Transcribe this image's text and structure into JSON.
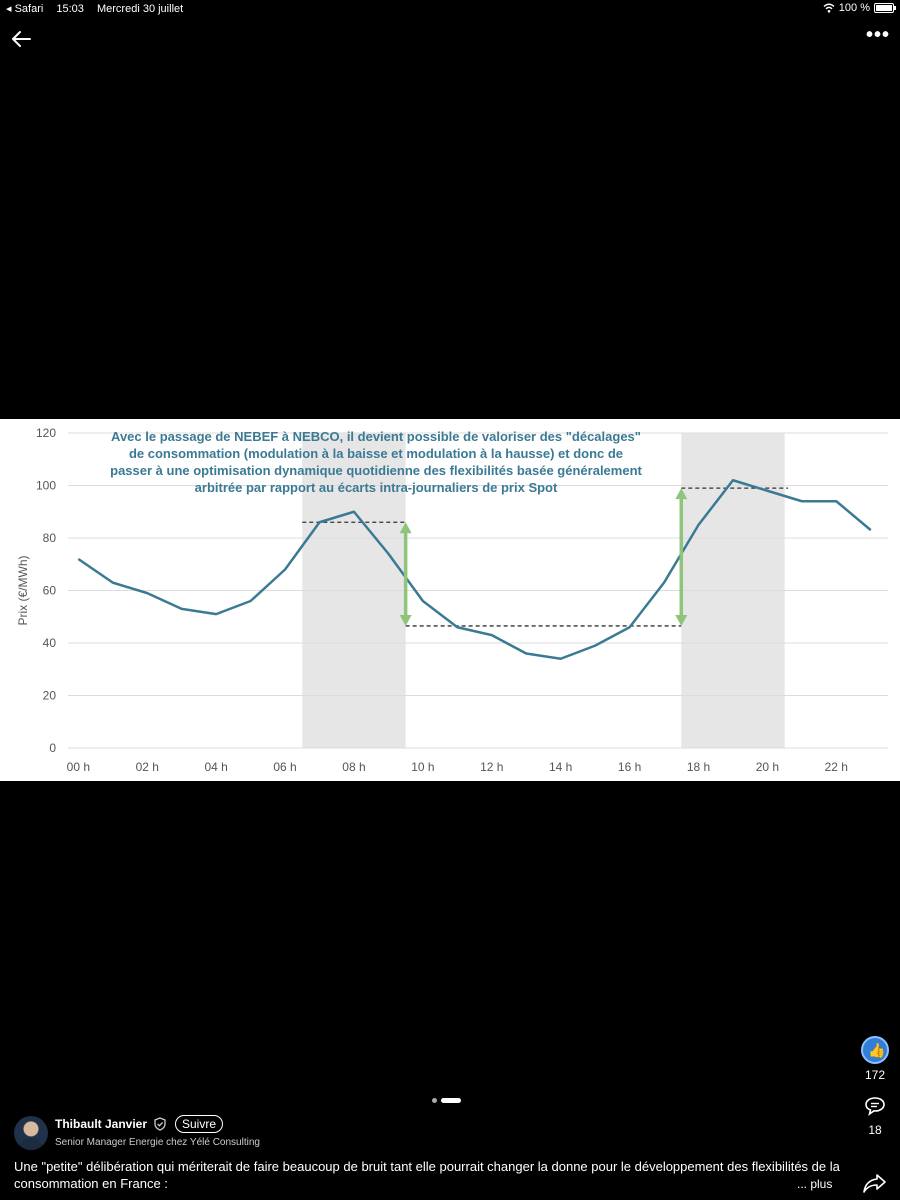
{
  "status_bar": {
    "app": "◂ Safari",
    "time": "15:03",
    "date": "Mercredi 30 juillet",
    "battery": "100 %"
  },
  "nav": {
    "more": "•••"
  },
  "chart_data": {
    "type": "line",
    "title": "Avec le passage de NEBEF à NEBCO, il devient possible de valoriser des \"décalages\"\nde consommation (modulation à la baisse et modulation à la hausse) et donc de\npasser à une optimisation dynamique quotidienne des flexibilités basée généralement\narbitrée par rapport au écarts intra-journaliers de prix Spot",
    "ylabel": "Prix (€/MWh)",
    "xlabel": "",
    "ylim": [
      0,
      120
    ],
    "yticks": [
      0,
      20,
      40,
      60,
      80,
      100,
      120
    ],
    "xlim": [
      -0.3,
      23.5
    ],
    "x_tick_positions": [
      0,
      2,
      4,
      6,
      8,
      10,
      12,
      14,
      16,
      18,
      20,
      22
    ],
    "x_tick_labels": [
      "00 h",
      "02 h",
      "04 h",
      "06 h",
      "08 h",
      "10 h",
      "12 h",
      "14 h",
      "16 h",
      "18 h",
      "20 h",
      "22 h"
    ],
    "grid": true,
    "series": [
      {
        "color": "#3b7a94",
        "x": [
          0,
          1,
          2,
          3,
          4,
          5,
          6,
          7,
          8,
          9,
          10,
          11,
          12,
          13,
          14,
          15,
          16,
          17,
          18,
          19,
          20,
          21,
          22,
          23
        ],
        "values": [
          72,
          63,
          59,
          53,
          51,
          56,
          68,
          86,
          90,
          74,
          56,
          46,
          43,
          36,
          34,
          39,
          46,
          63,
          85,
          102,
          98,
          94,
          94,
          83
        ]
      }
    ],
    "shaded_ranges": [
      [
        6.5,
        9.5
      ],
      [
        17.5,
        20.5
      ]
    ],
    "reference_lines": [
      {
        "x_from": 6.5,
        "x_to": 9.5,
        "y": 86
      },
      {
        "x_from": 9.5,
        "x_to": 17.5,
        "y": 46.5
      },
      {
        "x_from": 17.5,
        "x_to": 20.6,
        "y": 99
      }
    ],
    "arrows": [
      {
        "x": 9.5,
        "y_from": 46.5,
        "y_to": 86
      },
      {
        "x": 17.5,
        "y_from": 46.5,
        "y_to": 99
      }
    ],
    "colors": {
      "line": "#3b7a94",
      "arrow": "#8fc57a",
      "shade": "#e6e6e6",
      "title": "#3b7a94"
    }
  },
  "actions": {
    "likes": "172",
    "comments": "18"
  },
  "author": {
    "name": "Thibault Janvier",
    "follow_label": "Suivre",
    "subtitle": "Senior Manager Energie chez Yélé Consulting"
  },
  "post": {
    "text": "Une \"petite\" délibération qui mériterait de faire beaucoup de bruit tant elle pourrait changer la donne pour le développement des flexibilités de la consommation en France :",
    "more_label": "... plus"
  }
}
